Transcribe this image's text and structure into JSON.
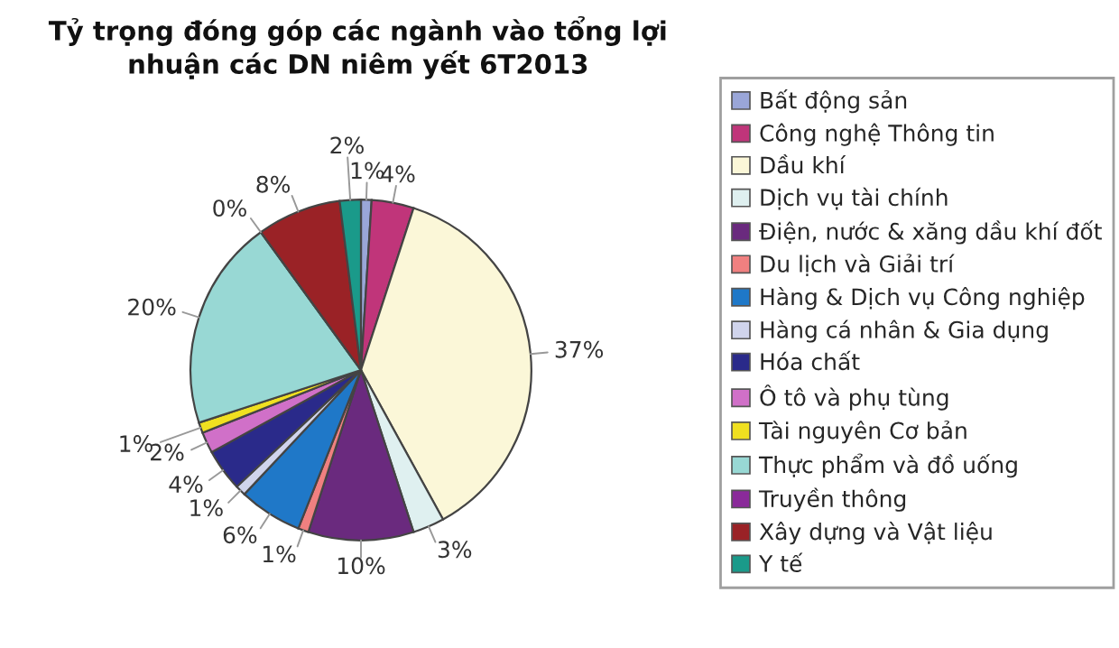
{
  "chart_data": {
    "type": "pie",
    "title": "Tỷ trọng đóng góp các ngành vào tổng lợi nhuận các DN niêm yết 6T2013",
    "categories": [
      "Bất động sản",
      "Công nghệ Thông tin",
      "Dầu khí",
      "Dịch vụ tài chính",
      "Điện, nước & xăng dầu khí đốt",
      "Du lịch và Giải trí",
      "Hàng & Dịch vụ Công nghiệp",
      "Hàng cá nhân & Gia dụng",
      "Hóa chất",
      "Ô tô và phụ tùng",
      "Tài nguyên Cơ bản",
      "Thực phẩm và đồ uống",
      "Truyền thông",
      "Xây dựng và Vật liệu",
      "Y tế"
    ],
    "values": [
      1,
      4,
      37,
      3,
      10,
      1,
      6,
      1,
      4,
      2,
      1,
      20,
      0,
      8,
      2
    ],
    "value_labels": [
      "1%",
      "4%",
      "37%",
      "3%",
      "10%",
      "1%",
      "6%",
      "1%",
      "4%",
      "2%",
      "1%",
      "20%",
      "0%",
      "8%",
      "2%"
    ],
    "colors": [
      "#9aa6d8",
      "#c0357a",
      "#fbf7d8",
      "#dff0f0",
      "#6a2a7e",
      "#f08080",
      "#1f78c8",
      "#d0d4ec",
      "#2a2a8a",
      "#d070c8",
      "#f0e020",
      "#98d8d4",
      "#8a2a9a",
      "#9a2226",
      "#1a9a8a"
    ],
    "legend": "right"
  }
}
